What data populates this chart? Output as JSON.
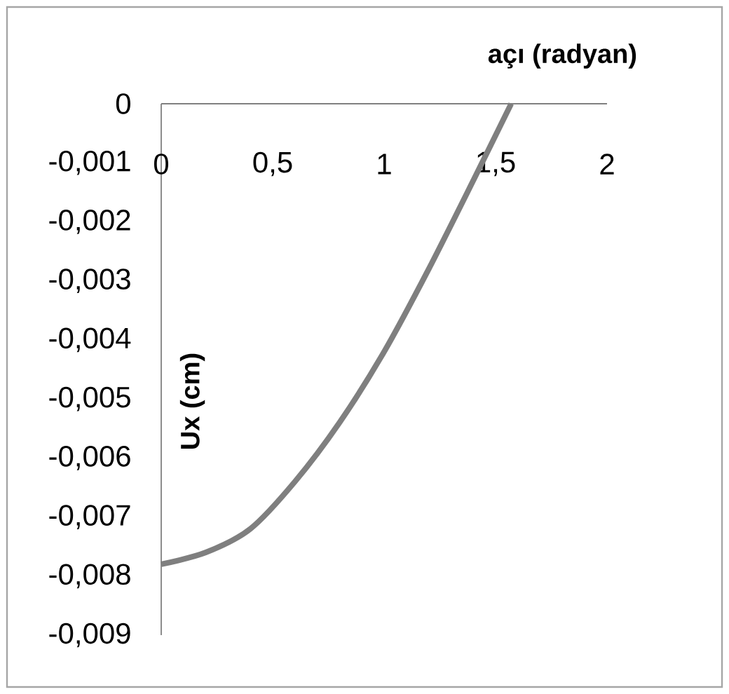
{
  "chart_data": {
    "type": "line",
    "xlabel": "açı (radyan)",
    "ylabel": "Ux (cm)",
    "x": [
      0,
      0.2,
      0.4,
      0.6,
      0.8,
      1.0,
      1.2,
      1.4,
      1.57
    ],
    "values": [
      -0.0078,
      -0.0076,
      -0.0072,
      -0.0064,
      -0.0054,
      -0.0042,
      -0.0028,
      -0.0013,
      0
    ],
    "color": "#7f7f7f",
    "marker": "none",
    "line_style": "solid",
    "xlim": [
      0,
      2
    ],
    "ylim": [
      -0.009,
      0
    ],
    "xticks": [
      0,
      {
        "value": 0.5,
        "label": "0,5"
      },
      1,
      {
        "value": 1.5,
        "label": "1,5"
      },
      2
    ],
    "yticks": [
      0,
      {
        "value": -0.001,
        "label": "-0,001"
      },
      {
        "value": -0.002,
        "label": "-0,002"
      },
      {
        "value": -0.003,
        "label": "-0,003"
      },
      {
        "value": -0.004,
        "label": "-0,004"
      },
      {
        "value": -0.005,
        "label": "-0,005"
      },
      {
        "value": -0.006,
        "label": "-0,006"
      },
      {
        "value": -0.007,
        "label": "-0,007"
      },
      {
        "value": -0.008,
        "label": "-0,008"
      },
      {
        "value": -0.009,
        "label": "-0,009"
      }
    ]
  }
}
